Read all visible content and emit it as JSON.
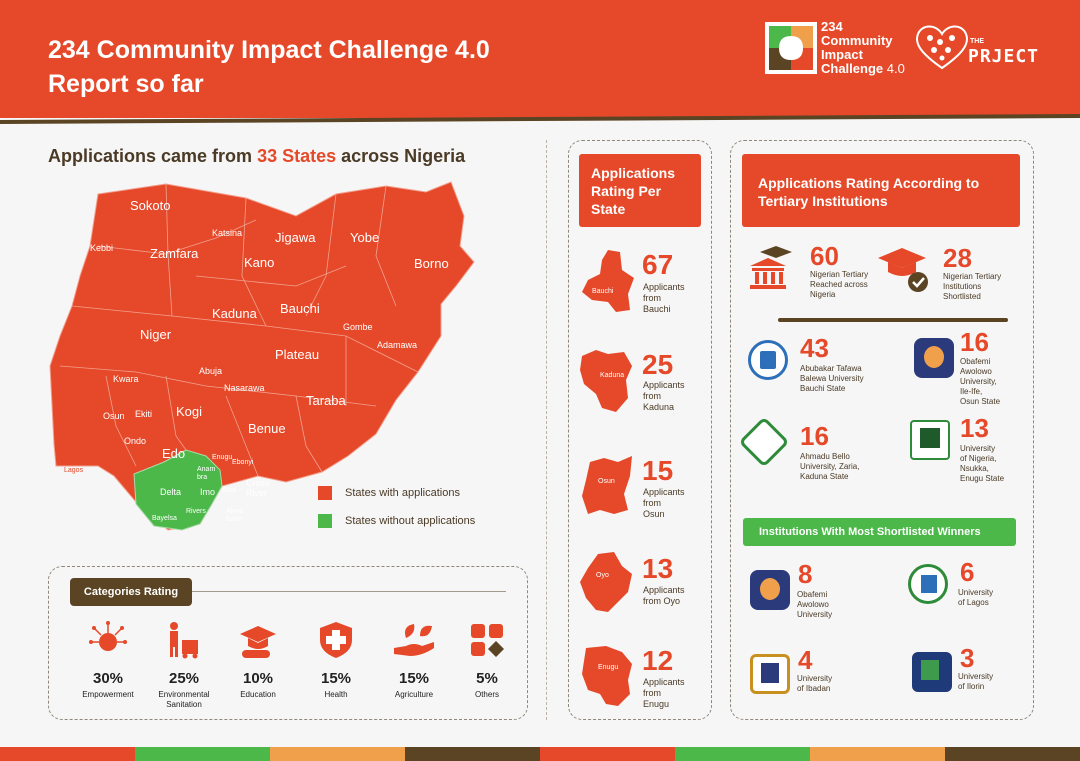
{
  "header": {
    "title_line1": "234 Community Impact Challenge 4.0",
    "title_line2": "Report so far",
    "logo1_line1": "234",
    "logo1_line2": "Community",
    "logo1_line3": "Impact",
    "logo1_line4": "Challenge",
    "logo1_version": "4.0",
    "logo2_the": "THE",
    "logo2_word": "PRJECT"
  },
  "map": {
    "heading_prefix": "Applications came from ",
    "heading_highlight": "33 States",
    "heading_suffix": " across Nigeria",
    "states": {
      "sokoto": "Sokoto",
      "kebbi": "Kebbi",
      "zamfara": "Zamfara",
      "katsina": "Katsina",
      "jigawa": "Jigawa",
      "yobe": "Yobe",
      "kano": "Kano",
      "borno": "Borno",
      "kaduna": "Kaduna",
      "bauchi": "Bauchi",
      "niger": "Niger",
      "gombe": "Gombe",
      "adamawa": "Adamawa",
      "plateau": "Plateau",
      "kwara": "Kwara",
      "abuja": "Abuja",
      "nasarawa": "Nasarawa",
      "taraba": "Taraba",
      "osun": "Osun",
      "ekiti": "Ekiti",
      "kogi": "Kogi",
      "ondo": "Ondo",
      "edo": "Edo",
      "benue": "Benue",
      "enugu": "Enugu",
      "anambra": "Anam bra",
      "ebonyi": "Ebonyi",
      "delta": "Delta",
      "imo": "Imo",
      "abia": "Abia",
      "cross_river": "Cross River",
      "rivers": "Rivers",
      "bayelsa": "Bayelsa",
      "akwa_ibom": "Akwa Ibom",
      "lagos": "Lagos"
    },
    "legend_with": "States with applications",
    "legend_without": "States without applications",
    "color_with": "#e5492a",
    "color_without": "#4cb84a"
  },
  "categories": {
    "title": "Categories Rating",
    "items": [
      {
        "pct": "30%",
        "name": "Empowerment",
        "icon": "empowerment-icon"
      },
      {
        "pct": "25%",
        "name": "Environmental Sanitation",
        "icon": "sanitation-icon"
      },
      {
        "pct": "10%",
        "name": "Education",
        "icon": "education-icon"
      },
      {
        "pct": "15%",
        "name": "Health",
        "icon": "health-icon"
      },
      {
        "pct": "15%",
        "name": "Agriculture",
        "icon": "agriculture-icon"
      },
      {
        "pct": "5%",
        "name": "Others",
        "icon": "others-icon"
      }
    ]
  },
  "per_state": {
    "title": "Applications Rating Per State",
    "rows": [
      {
        "state": "Bauchi",
        "num": "67",
        "line1": "Applicants",
        "line2": "from Bauchi"
      },
      {
        "state": "Kaduna",
        "num": "25",
        "line1": "Applicants",
        "line2": "from Kaduna"
      },
      {
        "state": "Osun",
        "num": "15",
        "line1": "Applicants",
        "line2": "from Osun"
      },
      {
        "state": "Oyo",
        "num": "13",
        "line1": "Applicants",
        "line2": "from Oyo"
      },
      {
        "state": "Enugu",
        "num": "12",
        "line1": "Applicants",
        "line2": "from Enugu"
      }
    ]
  },
  "tertiary": {
    "title": "Applications Rating According to Tertiary Institutions",
    "reached_num": "60",
    "reached_l1": "Nigerian Tertiary",
    "reached_l2": "Reached across",
    "reached_l3": "Nigeria",
    "shortlisted_num": "28",
    "shortlisted_l1": "Nigerian Tertiary",
    "shortlisted_l2": "Institutions",
    "shortlisted_l3": "Shortlisted",
    "institutions": [
      {
        "num": "43",
        "l1": "Abubakar Tafawa",
        "l2": "Balewa University",
        "l3": "Bauchi State",
        "l4": "",
        "l5": ""
      },
      {
        "num": "16",
        "l1": "Obafemi",
        "l2": "Awolowo",
        "l3": "University,",
        "l4": "Ile-Ife,",
        "l5": "Osun State"
      },
      {
        "num": "16",
        "l1": "Ahmadu Bello",
        "l2": "University, Zaria,",
        "l3": "Kaduna State",
        "l4": "",
        "l5": ""
      },
      {
        "num": "13",
        "l1": "University",
        "l2": "of Nigeria,",
        "l3": "Nsukka,",
        "l4": "Enugu State",
        "l5": ""
      }
    ],
    "winners_title": "Institutions With Most Shortlisted Winners",
    "winners": [
      {
        "num": "8",
        "l1": "Obafemi",
        "l2": "Awolowo",
        "l3": "University"
      },
      {
        "num": "6",
        "l1": "University",
        "l2": "of Lagos",
        "l3": ""
      },
      {
        "num": "4",
        "l1": "University",
        "l2": "of Ibadan",
        "l3": ""
      },
      {
        "num": "3",
        "l1": "University",
        "l2": "of Ilorin",
        "l3": ""
      }
    ]
  },
  "footer_colors": [
    "#e5492a",
    "#4cb84a",
    "#f0a04b",
    "#5b4424",
    "#e5492a",
    "#4cb84a",
    "#f0a04b",
    "#5b4424"
  ]
}
